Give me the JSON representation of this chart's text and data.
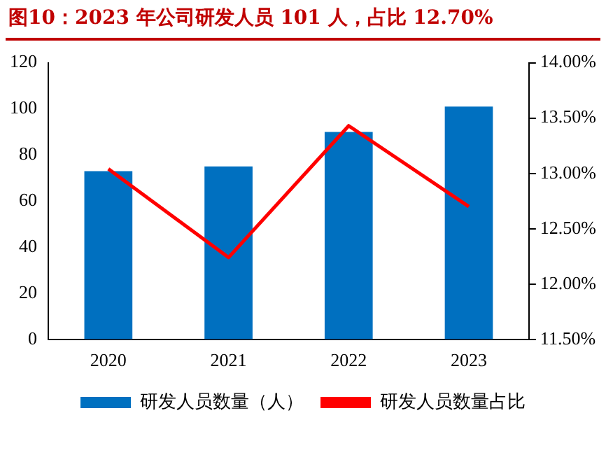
{
  "chart_data": {
    "type": "bar",
    "title": "图10：2023 年公司研发人员 101 人，占比 12.70%",
    "categories": [
      "2020",
      "2021",
      "2022",
      "2023"
    ],
    "series": [
      {
        "name": "研发人员数量（人）",
        "type": "bar",
        "color": "#0070c0",
        "values": [
          73,
          75,
          90,
          101
        ]
      },
      {
        "name": "研发人员数量占比",
        "type": "line",
        "axis": "y2",
        "color": "#ff0000",
        "values": [
          13.04,
          12.24,
          13.43,
          12.7
        ]
      }
    ],
    "ylim": [
      0,
      120
    ],
    "yticks": [
      0,
      20,
      40,
      60,
      80,
      100,
      120
    ],
    "y2lim": [
      11.5,
      14
    ],
    "y2ticks": [
      {
        "value": 11.5,
        "label": "11.50%"
      },
      {
        "value": 12,
        "label": "12.00%"
      },
      {
        "value": 12.5,
        "label": "12.50%"
      },
      {
        "value": 13,
        "label": "13.00%"
      },
      {
        "value": 13.5,
        "label": "13.50%"
      },
      {
        "value": 14,
        "label": "14.00%"
      }
    ],
    "grid": false,
    "legend": "bottom",
    "marker": "none"
  }
}
